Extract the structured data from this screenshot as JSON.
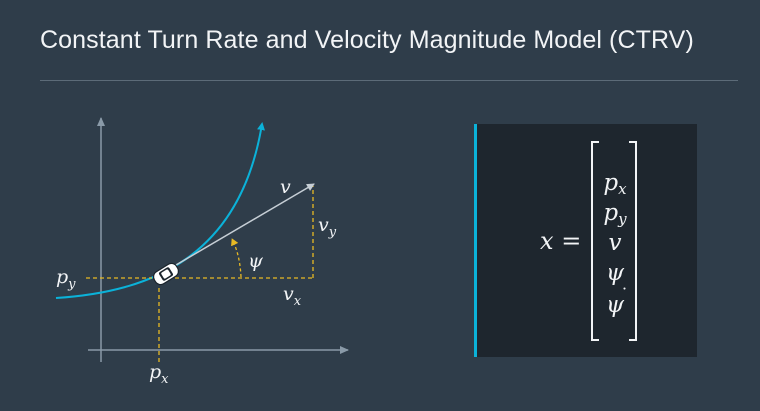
{
  "title": "Constant Turn Rate and Velocity Magnitude Model (CTRV)",
  "diagram": {
    "labels": {
      "v": "v",
      "v_y_base": "v",
      "v_y_sub": "y",
      "v_x_base": "v",
      "v_x_sub": "x",
      "psi": "ψ",
      "p_y_base": "p",
      "p_y_sub": "y",
      "p_x_base": "p",
      "p_x_sub": "x"
    },
    "colors": {
      "trajectory": "#0bb2d9",
      "guides": "#e8b924",
      "axes": "#8a9aa8",
      "velocity_vector": "#c6ced5",
      "vehicle": "#ffffff"
    }
  },
  "state_vector": {
    "lhs_var": "x",
    "equals": "=",
    "entries": [
      {
        "base": "p",
        "sub": "x"
      },
      {
        "base": "p",
        "sub": "y"
      },
      {
        "base": "v",
        "sub": ""
      },
      {
        "base": "ψ",
        "sub": ""
      },
      {
        "base": "ψ",
        "sub": "",
        "accent": "˙"
      }
    ]
  }
}
